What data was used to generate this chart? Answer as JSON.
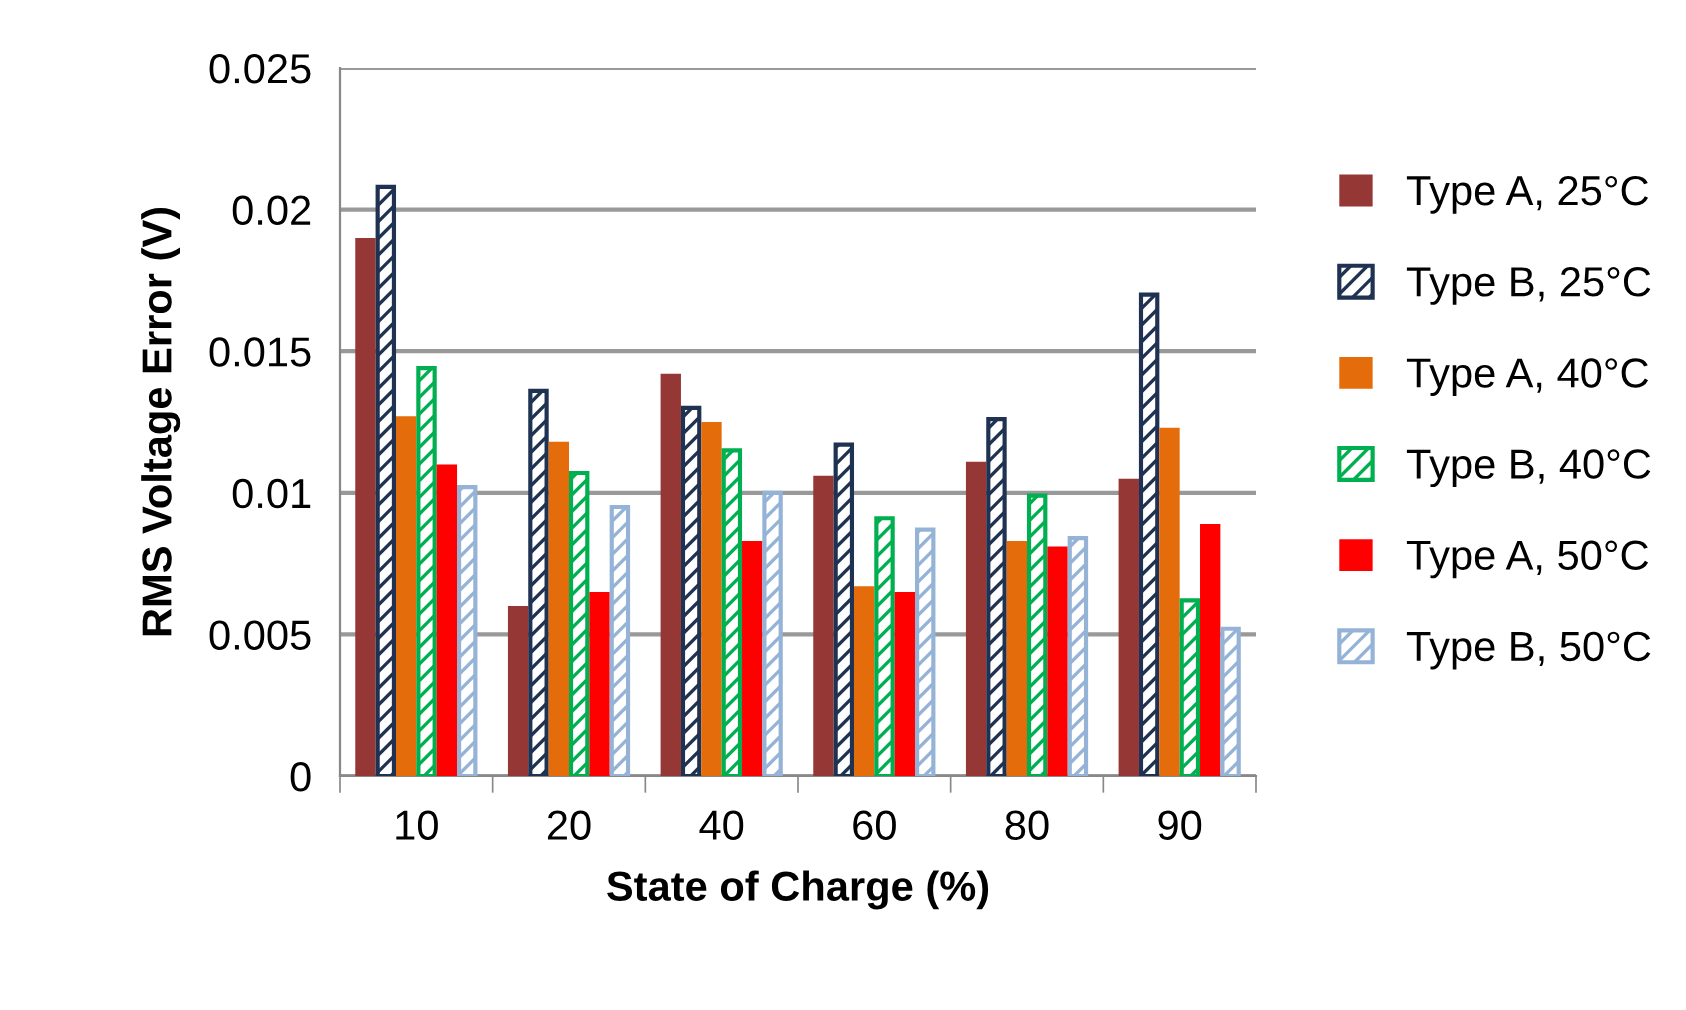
{
  "chart_data": {
    "type": "bar",
    "xlabel": "State of Charge (%)",
    "ylabel": "RMS Voltage Error (V)",
    "categories": [
      "10",
      "20",
      "40",
      "60",
      "80",
      "90"
    ],
    "series": [
      {
        "name": "Type A, 25°C",
        "color": "#953735",
        "values": [
          0.019,
          0.006,
          0.0142,
          0.0106,
          0.0111,
          0.0105
        ]
      },
      {
        "name": "Type B, 25°C",
        "color": "#1f3252",
        "values": [
          0.0208,
          0.0136,
          0.013,
          0.0117,
          0.0126,
          0.017
        ]
      },
      {
        "name": "Type A, 40°C",
        "color": "#e46c0a",
        "values": [
          0.0127,
          0.0118,
          0.0125,
          0.0067,
          0.0083,
          0.0123
        ]
      },
      {
        "name": "Type B, 40°C",
        "color": "#00b050",
        "values": [
          0.0144,
          0.0107,
          0.0115,
          0.0091,
          0.0099,
          0.0062
        ]
      },
      {
        "name": "Type A, 50°C",
        "color": "#ff0000",
        "values": [
          0.011,
          0.0065,
          0.0083,
          0.0065,
          0.0081,
          0.0089
        ]
      },
      {
        "name": "Type B, 50°C",
        "color": "#95b3d7",
        "values": [
          0.0102,
          0.0095,
          0.01,
          0.0087,
          0.0084,
          0.0052
        ]
      }
    ],
    "ylim": [
      0,
      0.025
    ],
    "yticks": [
      {
        "value": 0,
        "label": "0"
      },
      0.005,
      0.01,
      0.015,
      0.02,
      0.025
    ],
    "grid": "y",
    "legend": "right"
  }
}
